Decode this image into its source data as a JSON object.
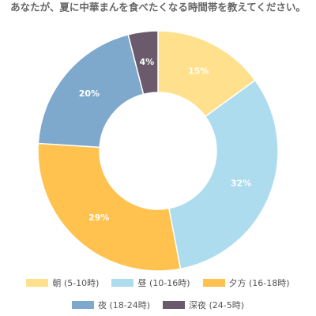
{
  "chart_data": {
    "type": "doughnut",
    "title": "あなたが、夏に中華まんを食べたくなる時間帯を教えてください。",
    "categories": [
      "朝 (5-10時)",
      "昼 (10-16時)",
      "夕方 (16-18時)",
      "夜 (18-24時)",
      "深夜 (24-5時)"
    ],
    "values": [
      15,
      32,
      29,
      20,
      4
    ],
    "value_labels": [
      "15%",
      "32%",
      "29%",
      "20%",
      "4%"
    ],
    "colors": [
      "#ffe08c",
      "#addcef",
      "#ffc24f",
      "#7ea8cc",
      "#6b5a6b"
    ]
  }
}
